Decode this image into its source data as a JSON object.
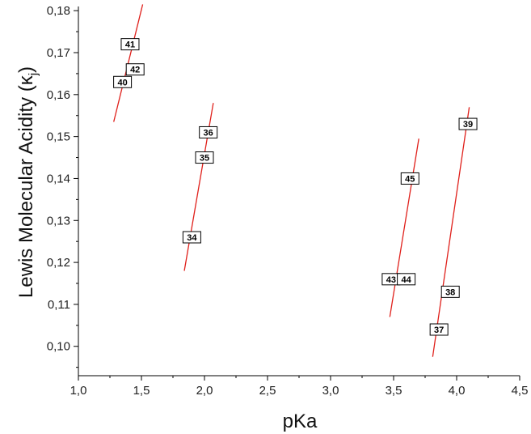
{
  "chart_data": {
    "type": "scatter",
    "title": "",
    "xlabel": "pKa",
    "ylabel": "Lewis Molecular Acidity (κ",
    "ylabel_subscript": "j",
    "ylabel_close": ")",
    "xlim": [
      1.0,
      4.5
    ],
    "ylim": [
      0.093,
      0.181
    ],
    "xticks": [
      1.0,
      1.5,
      2.0,
      2.5,
      3.0,
      3.5,
      4.0,
      4.5
    ],
    "xtick_labels": [
      "1,0",
      "1,5",
      "2,0",
      "2,5",
      "3,0",
      "3,5",
      "4,0",
      "4,5"
    ],
    "yticks": [
      0.1,
      0.11,
      0.12,
      0.13,
      0.14,
      0.15,
      0.16,
      0.17,
      0.18
    ],
    "ytick_labels": [
      "0,10",
      "0,11",
      "0,12",
      "0,13",
      "0,14",
      "0,15",
      "0,16",
      "0,17",
      "0,18"
    ],
    "grid": false,
    "points": [
      {
        "label": "41",
        "x": 1.41,
        "y": 0.172
      },
      {
        "label": "42",
        "x": 1.45,
        "y": 0.166
      },
      {
        "label": "40",
        "x": 1.35,
        "y": 0.163
      },
      {
        "label": "36",
        "x": 2.03,
        "y": 0.151
      },
      {
        "label": "35",
        "x": 2.0,
        "y": 0.145
      },
      {
        "label": "34",
        "x": 1.9,
        "y": 0.126
      },
      {
        "label": "45",
        "x": 3.63,
        "y": 0.14
      },
      {
        "label": "43",
        "x": 3.48,
        "y": 0.116
      },
      {
        "label": "44",
        "x": 3.6,
        "y": 0.116
      },
      {
        "label": "39",
        "x": 4.09,
        "y": 0.153
      },
      {
        "label": "38",
        "x": 3.95,
        "y": 0.113
      },
      {
        "label": "37",
        "x": 3.86,
        "y": 0.104
      }
    ],
    "fit_lines": [
      {
        "x1": 1.28,
        "y1": 0.1535,
        "x2": 1.51,
        "y2": 0.1815
      },
      {
        "x1": 1.84,
        "y1": 0.118,
        "x2": 2.07,
        "y2": 0.158
      },
      {
        "x1": 3.47,
        "y1": 0.107,
        "x2": 3.7,
        "y2": 0.1495
      },
      {
        "x1": 3.81,
        "y1": 0.0975,
        "x2": 4.1,
        "y2": 0.157
      }
    ],
    "line_color": "#e0201b"
  }
}
